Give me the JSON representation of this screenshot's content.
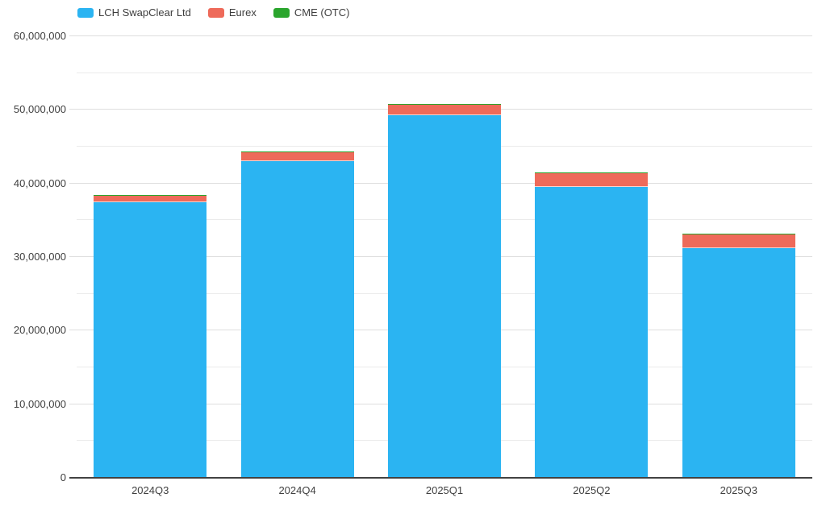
{
  "chart_data": {
    "type": "bar",
    "stacked": true,
    "title": "",
    "xlabel": "",
    "ylabel": "",
    "grid": true,
    "legend_position": "top-left",
    "categories": [
      "2024Q3",
      "2024Q4",
      "2025Q1",
      "2025Q2",
      "2025Q3"
    ],
    "series": [
      {
        "name": "LCH SwapClear Ltd",
        "color": "#2bb4f2",
        "values": [
          37500000,
          43000000,
          49250000,
          39550000,
          31200000
        ]
      },
      {
        "name": "Eurex",
        "color": "#ee6a5a",
        "values": [
          850000,
          1300000,
          1500000,
          1800000,
          1900000
        ]
      },
      {
        "name": "CME (OTC)",
        "color": "#2aa52d",
        "values": [
          100000,
          100000,
          100000,
          100000,
          100000
        ]
      }
    ],
    "ylim": [
      0,
      60000000
    ],
    "ytick_step": 10000000,
    "minor_grid_step": 5000000,
    "ytick_labels": [
      "0",
      "10,000,000",
      "20,000,000",
      "30,000,000",
      "40,000,000",
      "50,000,000",
      "60,000,000"
    ]
  },
  "style": {
    "background": "#ffffff",
    "grid_major": "#dedede",
    "grid_minor": "#ebebeb",
    "axis_line": "#424242",
    "text": "#3f3f3f"
  }
}
